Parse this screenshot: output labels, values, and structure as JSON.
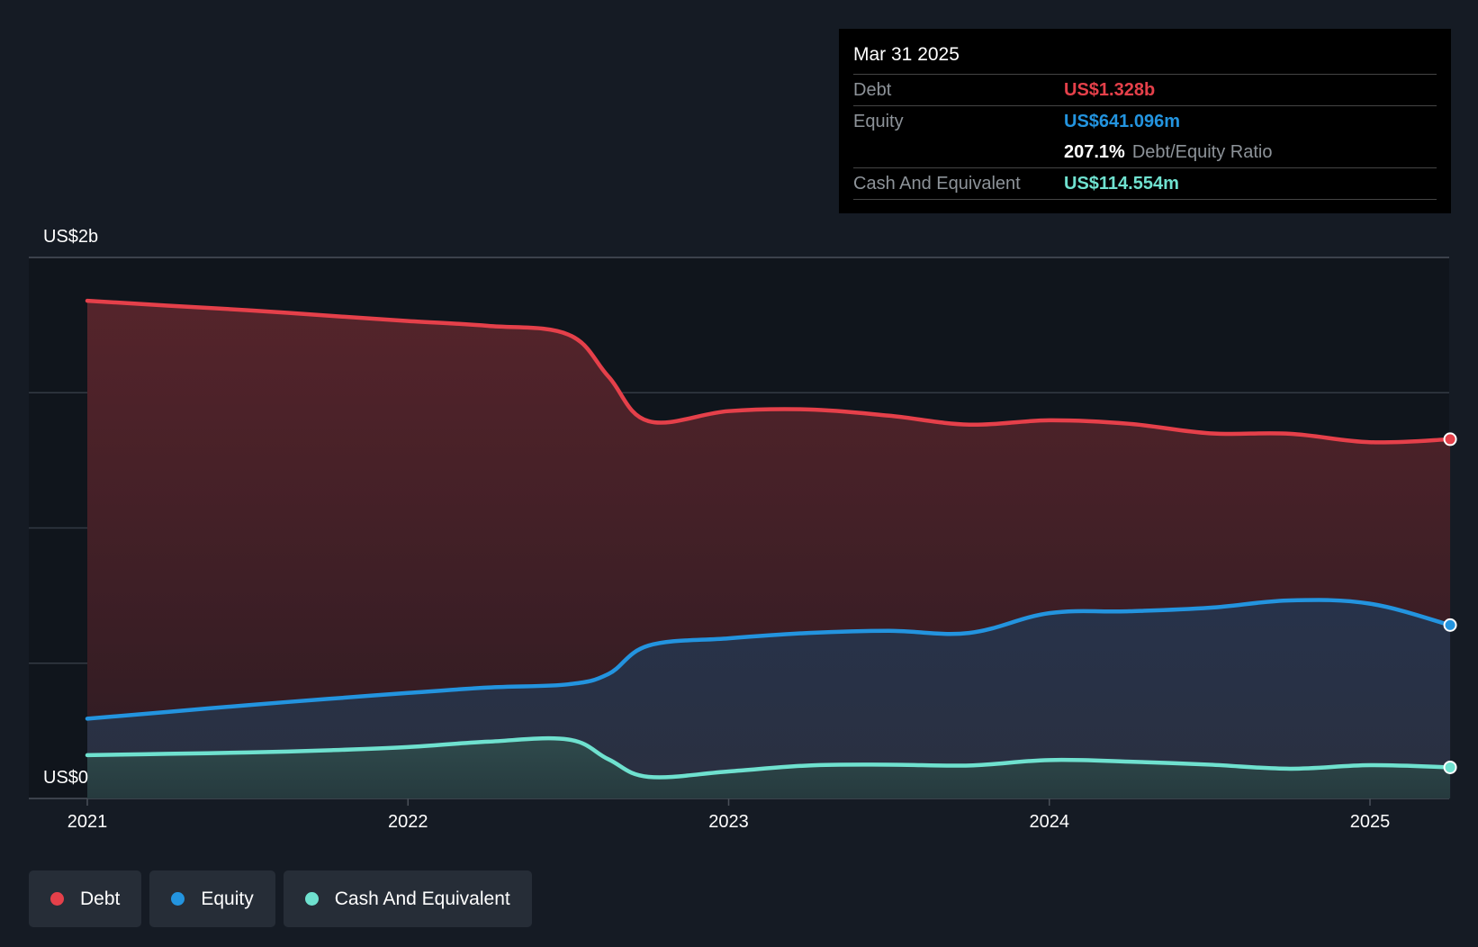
{
  "chart_data": {
    "type": "area",
    "ylim": [
      0,
      2000
    ],
    "y_unit": "US$m",
    "yticks": [
      {
        "value": 0,
        "label": "US$0"
      },
      {
        "value": 2000,
        "label": "US$2b"
      }
    ],
    "gridlines": [
      0,
      500,
      1000,
      1500,
      2000
    ],
    "xlim": [
      2021.0,
      2025.25
    ],
    "xticks": [
      {
        "value": 2021,
        "label": "2021"
      },
      {
        "value": 2022,
        "label": "2022"
      },
      {
        "value": 2023,
        "label": "2023"
      },
      {
        "value": 2024,
        "label": "2024"
      },
      {
        "value": 2025,
        "label": "2025"
      }
    ],
    "series": [
      {
        "name": "Debt",
        "color": "#e5404a",
        "points": [
          [
            2021.0,
            1840
          ],
          [
            2021.25,
            1822
          ],
          [
            2021.5,
            1805
          ],
          [
            2021.75,
            1785
          ],
          [
            2022.0,
            1765
          ],
          [
            2022.25,
            1747
          ],
          [
            2022.5,
            1715
          ],
          [
            2022.625,
            1560
          ],
          [
            2022.75,
            1395
          ],
          [
            2023.0,
            1432
          ],
          [
            2023.25,
            1438
          ],
          [
            2023.5,
            1415
          ],
          [
            2023.75,
            1382
          ],
          [
            2024.0,
            1398
          ],
          [
            2024.25,
            1385
          ],
          [
            2024.5,
            1350
          ],
          [
            2024.75,
            1348
          ],
          [
            2025.0,
            1317
          ],
          [
            2025.25,
            1328
          ]
        ]
      },
      {
        "name": "Equity",
        "color": "#2394df",
        "points": [
          [
            2021.0,
            295
          ],
          [
            2021.25,
            320
          ],
          [
            2021.5,
            345
          ],
          [
            2021.75,
            368
          ],
          [
            2022.0,
            390
          ],
          [
            2022.25,
            410
          ],
          [
            2022.5,
            422
          ],
          [
            2022.625,
            460
          ],
          [
            2022.75,
            565
          ],
          [
            2023.0,
            592
          ],
          [
            2023.25,
            612
          ],
          [
            2023.5,
            620
          ],
          [
            2023.75,
            612
          ],
          [
            2024.0,
            685
          ],
          [
            2024.25,
            692
          ],
          [
            2024.5,
            705
          ],
          [
            2024.75,
            732
          ],
          [
            2025.0,
            720
          ],
          [
            2025.25,
            641
          ]
        ]
      },
      {
        "name": "Cash And Equivalent",
        "color": "#6fe1cf",
        "points": [
          [
            2021.0,
            160
          ],
          [
            2021.25,
            165
          ],
          [
            2021.5,
            170
          ],
          [
            2021.75,
            178
          ],
          [
            2022.0,
            190
          ],
          [
            2022.25,
            210
          ],
          [
            2022.5,
            218
          ],
          [
            2022.625,
            145
          ],
          [
            2022.75,
            80
          ],
          [
            2023.0,
            100
          ],
          [
            2023.25,
            122
          ],
          [
            2023.5,
            125
          ],
          [
            2023.75,
            122
          ],
          [
            2024.0,
            142
          ],
          [
            2024.25,
            136
          ],
          [
            2024.5,
            125
          ],
          [
            2024.75,
            110
          ],
          [
            2025.0,
            123
          ],
          [
            2025.25,
            115
          ]
        ]
      }
    ],
    "legend_placement": "bottom-left"
  },
  "tooltip": {
    "date": "Mar 31 2025",
    "debt_label": "Debt",
    "debt_value": "US$1.328b",
    "equity_label": "Equity",
    "equity_value": "US$641.096m",
    "ratio_value": "207.1%",
    "ratio_label": "Debt/Equity Ratio",
    "cash_label": "Cash And Equivalent",
    "cash_value": "US$114.554m"
  },
  "legend": [
    {
      "label": "Debt",
      "color": "#e5404a"
    },
    {
      "label": "Equity",
      "color": "#2394df"
    },
    {
      "label": "Cash And Equivalent",
      "color": "#6fe1cf"
    }
  ],
  "colors": {
    "background": "#151b24",
    "plot_past": "#11161d",
    "grid": "#3a4049"
  }
}
